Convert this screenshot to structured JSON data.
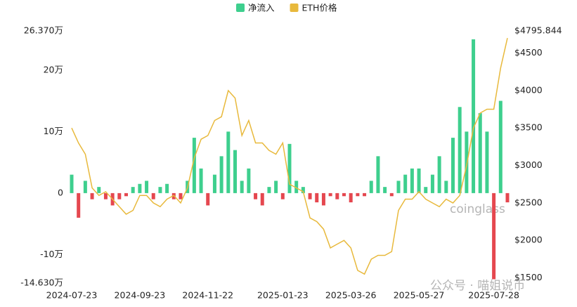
{
  "chart_data": {
    "type": "combo",
    "legend": "top",
    "watermarks": [
      "coinglass",
      "公众号 · 喵姐说币"
    ],
    "categories": [
      "2024-07-23",
      null,
      null,
      null,
      null,
      null,
      null,
      null,
      null,
      null,
      "2024-09-23",
      null,
      null,
      null,
      null,
      null,
      null,
      null,
      null,
      null,
      "2024-11-22",
      null,
      null,
      null,
      null,
      null,
      null,
      null,
      null,
      null,
      null,
      "2025-01-23",
      null,
      null,
      null,
      null,
      null,
      null,
      null,
      null,
      null,
      "2025-03-26",
      null,
      null,
      null,
      null,
      null,
      null,
      null,
      null,
      null,
      "2025-05-27",
      null,
      null,
      null,
      null,
      null,
      null,
      null,
      null,
      null,
      null,
      "2025-07-28",
      null,
      null
    ],
    "series": [
      {
        "name": "净流入",
        "type": "bar",
        "color": "#3ecf8e",
        "negative_color": "#e5474f",
        "values": [
          3,
          -4,
          2,
          -1,
          1,
          -1,
          -2,
          -1,
          -0.5,
          1,
          1.5,
          2,
          -1,
          1,
          1.5,
          -1,
          -1,
          2,
          9,
          4,
          -2,
          3,
          6,
          10,
          7,
          2,
          4,
          -1,
          -2,
          1,
          2,
          -1,
          8,
          2,
          1,
          -1,
          -1.5,
          -2,
          -0.5,
          -1,
          -0.5,
          -1.5,
          -0.5,
          -0.5,
          2,
          6,
          1,
          -0.5,
          2,
          3,
          4,
          4,
          1,
          3,
          6,
          2,
          9,
          14,
          10,
          25,
          13,
          10,
          -14,
          15,
          -1.5
        ]
      },
      {
        "name": "ETH价格",
        "type": "line",
        "axis": "y2",
        "color": "#e8b93c",
        "values": [
          3500,
          3300,
          3150,
          2700,
          2600,
          2650,
          2550,
          2450,
          2350,
          2400,
          2600,
          2600,
          2500,
          2450,
          2550,
          2600,
          2500,
          2700,
          3100,
          3350,
          3400,
          3600,
          3650,
          4000,
          3900,
          3400,
          3600,
          3300,
          3300,
          3200,
          3150,
          3300,
          2750,
          2700,
          2650,
          2300,
          2250,
          2150,
          1900,
          1950,
          2000,
          1900,
          1600,
          1550,
          1750,
          1800,
          1800,
          1850,
          2400,
          2550,
          2550,
          2650,
          2550,
          2500,
          2450,
          2550,
          2500,
          2600,
          3000,
          3500,
          3700,
          3750,
          3750,
          4300,
          4700
        ]
      }
    ],
    "ylim": [
      -14.63,
      26.37
    ],
    "yticks": [
      {
        "value": 26.37,
        "label": "26.370万"
      },
      {
        "value": 20,
        "label": "20万"
      },
      {
        "value": 10,
        "label": "10万"
      },
      0,
      {
        "value": -10,
        "label": "-10万"
      },
      {
        "value": -14.63,
        "label": "-14.630万"
      }
    ],
    "y2lim": [
      1430,
      4795.844
    ],
    "y2ticks": [
      {
        "value": 4795.844,
        "label": "$4795.844"
      },
      {
        "value": 4500,
        "label": "$4500"
      },
      {
        "value": 4000,
        "label": "$4000"
      },
      {
        "value": 3500,
        "label": "$3500"
      },
      {
        "value": 3000,
        "label": "$3000"
      },
      {
        "value": 2500,
        "label": "$2500"
      },
      {
        "value": 2000,
        "label": "$2000"
      },
      {
        "value": 1500,
        "label": "$1500"
      }
    ],
    "grid": false
  }
}
